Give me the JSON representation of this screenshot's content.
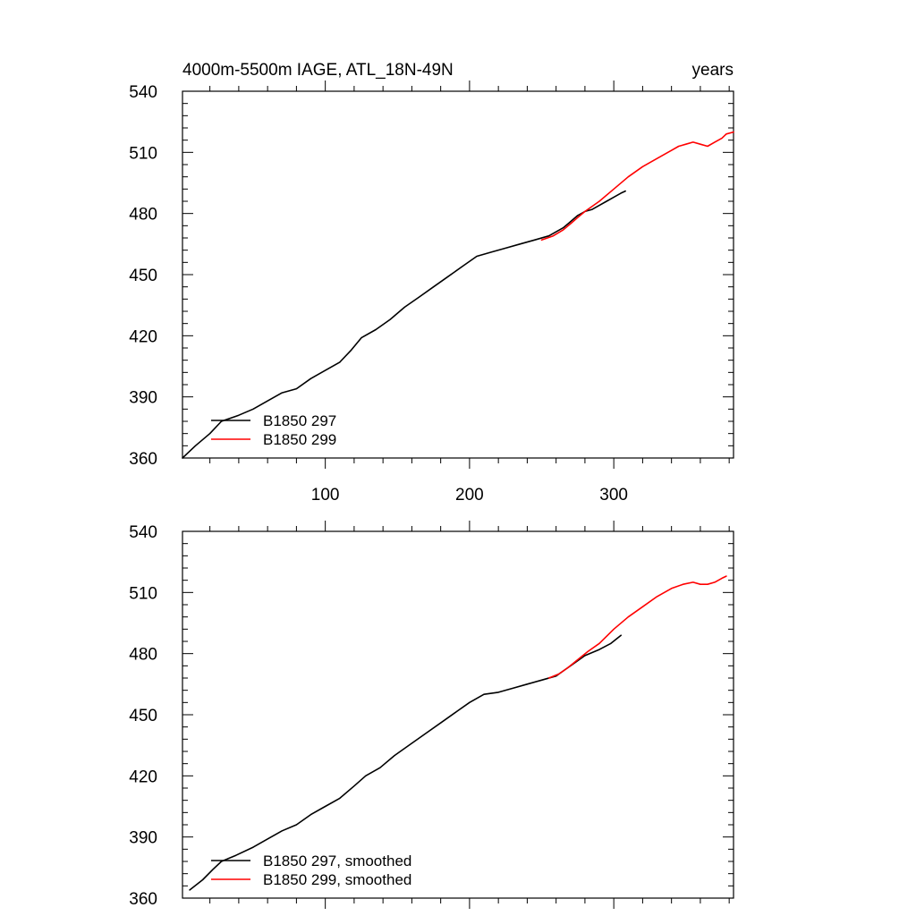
{
  "chart_data": [
    {
      "type": "line",
      "title": "4000m-5500m IAGE, ATL_18N-49N",
      "units_label": "years",
      "xlim": [
        1,
        383
      ],
      "ylim": [
        360,
        540
      ],
      "x_ticks": [
        100,
        200,
        300
      ],
      "x_tick_labels": [
        "100",
        "200",
        "300"
      ],
      "y_ticks": [
        360,
        390,
        420,
        450,
        480,
        510,
        540
      ],
      "y_tick_labels": [
        "360",
        "390",
        "420",
        "450",
        "480",
        "510",
        "540"
      ],
      "grid": false,
      "legend_position": "bottom-left",
      "series": [
        {
          "name": "B1850 297",
          "color": "#000000",
          "x": [
            1,
            10,
            20,
            28,
            40,
            50,
            60,
            70,
            80,
            90,
            100,
            110,
            118,
            125,
            135,
            145,
            155,
            165,
            175,
            185,
            195,
            205,
            215,
            225,
            235,
            245,
            255,
            265,
            270,
            275,
            280,
            285,
            290,
            295,
            300,
            305,
            308
          ],
          "y": [
            360,
            366,
            372,
            378,
            381,
            384,
            388,
            392,
            394,
            399,
            403,
            407,
            413,
            419,
            423,
            428,
            434,
            439,
            444,
            449,
            454,
            459,
            461,
            463,
            465,
            467,
            469,
            473,
            476,
            479,
            481,
            482,
            484,
            486,
            488,
            490,
            491
          ]
        },
        {
          "name": "B1850 299",
          "color": "#ff0000",
          "x": [
            250,
            258,
            265,
            270,
            275,
            280,
            290,
            300,
            310,
            320,
            330,
            340,
            345,
            350,
            355,
            360,
            365,
            370,
            375,
            378,
            383
          ],
          "y": [
            467,
            469,
            472,
            475,
            478,
            481,
            486,
            492,
            498,
            503,
            507,
            511,
            513,
            514,
            515,
            514,
            513,
            515,
            517,
            519,
            520
          ]
        }
      ]
    },
    {
      "type": "line",
      "title": "",
      "xlim": [
        1,
        383
      ],
      "ylim": [
        360,
        540
      ],
      "x_ticks": [
        100,
        200,
        300
      ],
      "y_ticks": [
        360,
        390,
        420,
        450,
        480,
        510,
        540
      ],
      "y_tick_labels": [
        "360",
        "390",
        "420",
        "450",
        "480",
        "510",
        "540"
      ],
      "grid": false,
      "legend_position": "bottom-left",
      "series": [
        {
          "name": "B1850 297, smoothed",
          "color": "#000000",
          "x": [
            6,
            15,
            22,
            28,
            38,
            50,
            60,
            70,
            80,
            90,
            100,
            110,
            120,
            128,
            138,
            148,
            160,
            170,
            182,
            192,
            200,
            210,
            220,
            230,
            240,
            250,
            260,
            270,
            280,
            290,
            298,
            305
          ],
          "y": [
            364,
            369,
            374,
            378,
            381,
            385,
            389,
            393,
            396,
            401,
            405,
            409,
            415,
            420,
            424,
            430,
            436,
            441,
            447,
            452,
            456,
            460,
            461,
            463,
            465,
            467,
            469,
            474,
            479,
            482,
            485,
            489
          ]
        },
        {
          "name": "B1850 299, smoothed",
          "color": "#ff0000",
          "x": [
            255,
            262,
            268,
            275,
            282,
            290,
            300,
            310,
            320,
            330,
            340,
            348,
            355,
            360,
            365,
            370,
            375,
            378
          ],
          "y": [
            468,
            470,
            473,
            477,
            481,
            485,
            492,
            498,
            503,
            508,
            512,
            514,
            515,
            514,
            514,
            515,
            517,
            518
          ]
        }
      ]
    }
  ]
}
